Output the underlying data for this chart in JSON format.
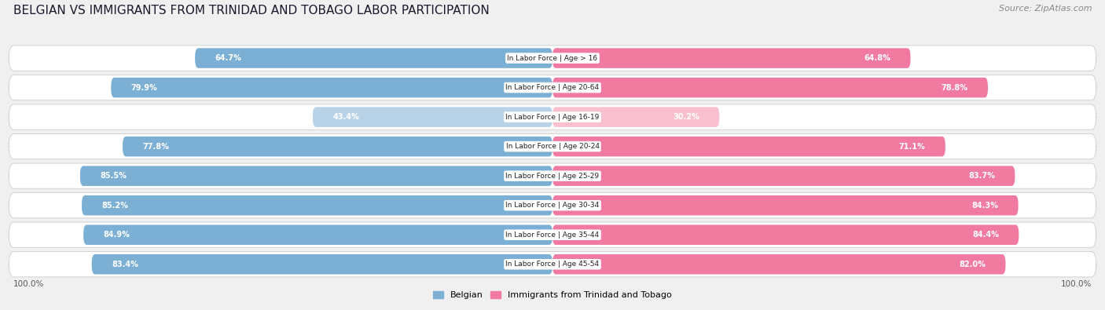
{
  "title": "BELGIAN VS IMMIGRANTS FROM TRINIDAD AND TOBAGO LABOR PARTICIPATION",
  "source": "Source: ZipAtlas.com",
  "categories": [
    "In Labor Force | Age > 16",
    "In Labor Force | Age 20-64",
    "In Labor Force | Age 16-19",
    "In Labor Force | Age 20-24",
    "In Labor Force | Age 25-29",
    "In Labor Force | Age 30-34",
    "In Labor Force | Age 35-44",
    "In Labor Force | Age 45-54"
  ],
  "belgian_values": [
    64.7,
    79.9,
    43.4,
    77.8,
    85.5,
    85.2,
    84.9,
    83.4
  ],
  "immigrant_values": [
    64.8,
    78.8,
    30.2,
    71.1,
    83.7,
    84.3,
    84.4,
    82.0
  ],
  "belgian_color": "#7BAFD4",
  "belgian_color_light": "#B8D3E8",
  "immigrant_color": "#F07AA0",
  "immigrant_color_light": "#F9C0CF",
  "max_value": 100.0,
  "background_color": "#f0f0f0",
  "row_background": "#ffffff",
  "row_background_alt": "#e8e8e8",
  "threshold_white": 50.0,
  "title_fontsize": 11,
  "label_fontsize": 7,
  "cat_fontsize": 6.5,
  "legend_fontsize": 8
}
